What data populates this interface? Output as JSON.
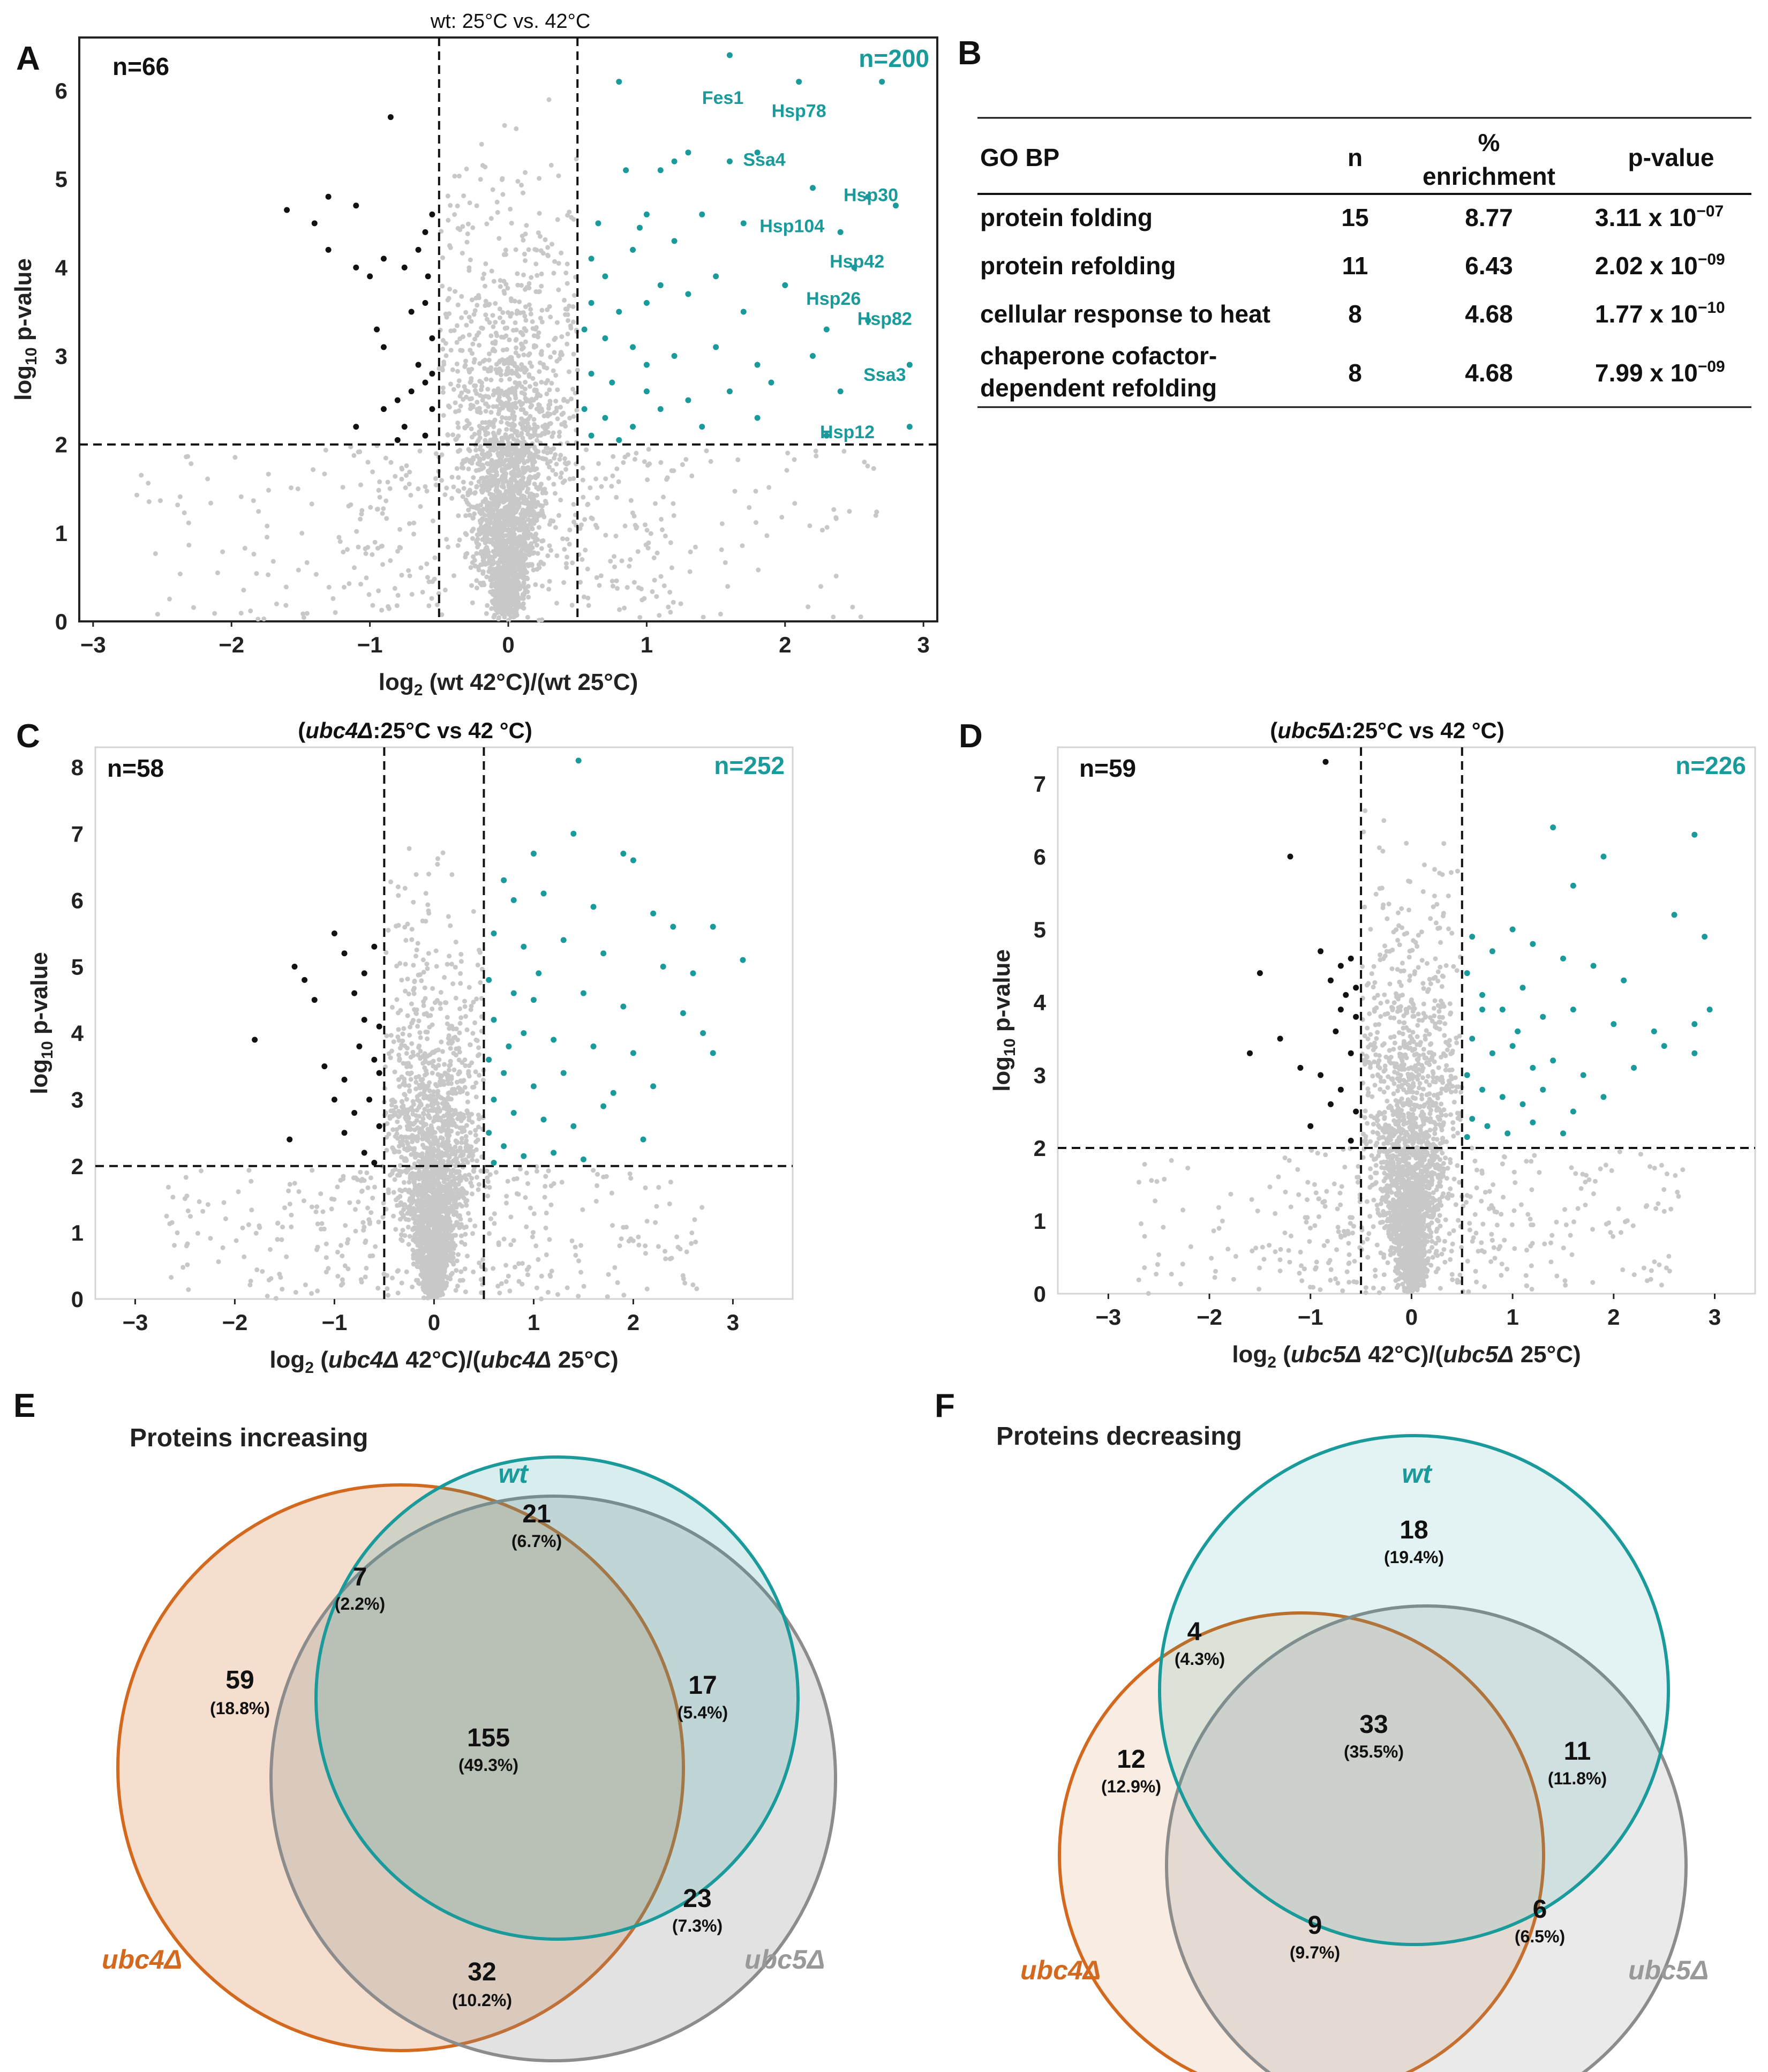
{
  "colors": {
    "teal": "#1a9a9a",
    "black": "#111111",
    "grey": "#c8c8c8",
    "orange": "#d2691e",
    "venn_grey": "#8c8c8c"
  },
  "chart_data": [
    {
      "id": "A",
      "type": "scatter",
      "letter": "A",
      "title": "wt: 25°C vs. 42°C",
      "xlabel": "log2 (wt 42°C)/(wt 25°C)",
      "xlabel_parts": [
        "log",
        "2",
        " (wt 42°C)/(wt 25°C)"
      ],
      "ylabel": "log10 p-value",
      "ylabel_parts": [
        "log",
        "10",
        " p-value"
      ],
      "xlim": [
        -3.1,
        3.1
      ],
      "ylim": [
        0,
        6.6
      ],
      "xticks": [
        -3,
        -2,
        -1,
        0,
        1,
        2,
        3
      ],
      "yticks": [
        0,
        1,
        2,
        3,
        4,
        5,
        6
      ],
      "thresholds": {
        "x": [
          -0.5,
          0.5
        ],
        "y": 2
      },
      "n_down": "n=66",
      "n_up": "n=200",
      "down_points": [
        [
          -1.6,
          4.65
        ],
        [
          -1.4,
          4.5
        ],
        [
          -1.3,
          4.8
        ],
        [
          -1.1,
          4.7
        ],
        [
          -0.85,
          5.7
        ],
        [
          -1.3,
          4.2
        ],
        [
          -1.1,
          4.0
        ],
        [
          -1.0,
          3.9
        ],
        [
          -0.9,
          4.1
        ],
        [
          -0.75,
          4.0
        ],
        [
          -0.65,
          4.2
        ],
        [
          -0.6,
          4.4
        ],
        [
          -0.55,
          4.6
        ],
        [
          -0.95,
          3.3
        ],
        [
          -0.9,
          3.1
        ],
        [
          -0.7,
          3.5
        ],
        [
          -0.6,
          3.6
        ],
        [
          -0.55,
          3.2
        ],
        [
          -0.65,
          2.9
        ],
        [
          -0.7,
          2.6
        ],
        [
          -0.8,
          2.5
        ],
        [
          -0.6,
          2.7
        ],
        [
          -0.55,
          2.4
        ],
        [
          -1.1,
          2.2
        ],
        [
          -0.9,
          2.4
        ],
        [
          -0.75,
          2.2
        ],
        [
          -0.6,
          2.1
        ],
        [
          -0.8,
          2.05
        ],
        [
          -0.55,
          2.8
        ],
        [
          -0.58,
          3.9
        ]
      ],
      "up_points": [
        [
          0.8,
          6.1
        ],
        [
          1.6,
          6.4
        ],
        [
          2.1,
          6.1
        ],
        [
          2.7,
          6.1
        ],
        [
          1.8,
          5.3
        ],
        [
          1.6,
          5.2
        ],
        [
          1.3,
          5.3
        ],
        [
          1.1,
          5.1
        ],
        [
          2.2,
          4.9
        ],
        [
          2.6,
          4.8
        ],
        [
          2.8,
          4.7
        ],
        [
          1.0,
          4.6
        ],
        [
          1.4,
          4.6
        ],
        [
          1.7,
          4.5
        ],
        [
          2.4,
          4.4
        ],
        [
          1.2,
          4.3
        ],
        [
          0.9,
          4.2
        ],
        [
          0.6,
          4.1
        ],
        [
          0.7,
          3.9
        ],
        [
          1.1,
          3.8
        ],
        [
          1.5,
          3.9
        ],
        [
          2.0,
          3.8
        ],
        [
          2.5,
          4.0
        ],
        [
          0.6,
          3.6
        ],
        [
          0.8,
          3.5
        ],
        [
          1.0,
          3.6
        ],
        [
          1.3,
          3.7
        ],
        [
          1.7,
          3.5
        ],
        [
          2.3,
          3.3
        ],
        [
          2.6,
          3.4
        ],
        [
          0.55,
          3.3
        ],
        [
          0.7,
          3.2
        ],
        [
          0.9,
          3.1
        ],
        [
          1.2,
          3.0
        ],
        [
          1.5,
          3.1
        ],
        [
          1.8,
          2.9
        ],
        [
          2.2,
          3.0
        ],
        [
          2.9,
          2.9
        ],
        [
          0.6,
          2.8
        ],
        [
          0.75,
          2.7
        ],
        [
          1.0,
          2.6
        ],
        [
          1.3,
          2.5
        ],
        [
          1.6,
          2.6
        ],
        [
          1.9,
          2.7
        ],
        [
          2.4,
          2.6
        ],
        [
          0.55,
          2.4
        ],
        [
          0.7,
          2.3
        ],
        [
          0.9,
          2.2
        ],
        [
          1.1,
          2.4
        ],
        [
          1.4,
          2.2
        ],
        [
          1.8,
          2.3
        ],
        [
          2.3,
          2.1
        ],
        [
          2.9,
          2.2
        ],
        [
          0.6,
          2.1
        ],
        [
          0.8,
          2.05
        ],
        [
          1.0,
          2.9
        ],
        [
          0.65,
          4.5
        ],
        [
          0.85,
          5.1
        ],
        [
          1.2,
          5.2
        ],
        [
          0.95,
          4.45
        ]
      ],
      "labels": [
        {
          "text": "Fes1",
          "x": 1.55,
          "y": 5.85
        },
        {
          "text": "Hsp78",
          "x": 2.1,
          "y": 5.7
        },
        {
          "text": "Ssa4",
          "x": 1.85,
          "y": 5.15
        },
        {
          "text": "Hsp30",
          "x": 2.62,
          "y": 4.75
        },
        {
          "text": "Hsp104",
          "x": 2.05,
          "y": 4.4
        },
        {
          "text": "Hsp42",
          "x": 2.52,
          "y": 4.0
        },
        {
          "text": "Hsp26",
          "x": 2.35,
          "y": 3.58
        },
        {
          "text": "Hsp82",
          "x": 2.72,
          "y": 3.35
        },
        {
          "text": "Ssa3",
          "x": 2.72,
          "y": 2.72
        },
        {
          "text": "Hsp12",
          "x": 2.45,
          "y": 2.07
        }
      ]
    },
    {
      "id": "C",
      "type": "scatter",
      "letter": "C",
      "title": "(ubc4Δ:25°C vs 42 °C)",
      "title_parts": [
        "(",
        "ubc4Δ",
        ":25°C  vs 42 °C)"
      ],
      "xlabel": "log2 (ubc4Δ 42°C)/(ubc4Δ 25°C)",
      "xlabel_parts": [
        "log",
        "2",
        " (",
        "ubc4Δ",
        " 42°C)/(",
        "ubc4Δ",
        " 25°C)"
      ],
      "ylabel": "log10 p-value",
      "ylabel_parts": [
        "log",
        "10",
        " p-value"
      ],
      "xlim": [
        -3.4,
        3.6
      ],
      "ylim": [
        0,
        8.3
      ],
      "xticks": [
        -3,
        -2,
        -1,
        0,
        1,
        2,
        3
      ],
      "yticks": [
        0,
        1,
        2,
        3,
        4,
        5,
        6,
        7,
        8
      ],
      "thresholds": {
        "x": [
          -0.5,
          0.5
        ],
        "y": 2
      },
      "n_down": "n=58",
      "n_up": "n=252",
      "down_points": [
        [
          -1.8,
          3.9
        ],
        [
          -1.4,
          5.0
        ],
        [
          -1.3,
          4.8
        ],
        [
          -1.0,
          5.5
        ],
        [
          -0.9,
          5.2
        ],
        [
          -1.2,
          4.5
        ],
        [
          -0.8,
          4.6
        ],
        [
          -0.7,
          4.9
        ],
        [
          -0.6,
          5.3
        ],
        [
          -1.1,
          3.5
        ],
        [
          -0.9,
          3.3
        ],
        [
          -0.75,
          3.8
        ],
        [
          -0.6,
          3.6
        ],
        [
          -0.55,
          4.1
        ],
        [
          -1.45,
          2.4
        ],
        [
          -0.8,
          2.8
        ],
        [
          -0.65,
          3.0
        ],
        [
          -0.55,
          2.6
        ],
        [
          -0.7,
          2.2
        ],
        [
          -0.6,
          2.05
        ],
        [
          -0.9,
          2.5
        ],
        [
          -1.0,
          3.0
        ],
        [
          -0.55,
          3.4
        ],
        [
          -0.7,
          4.2
        ]
      ],
      "up_points": [
        [
          1.45,
          8.1
        ],
        [
          1.0,
          6.7
        ],
        [
          1.4,
          7.0
        ],
        [
          1.9,
          6.7
        ],
        [
          2.0,
          6.6
        ],
        [
          0.7,
          6.3
        ],
        [
          0.8,
          6.0
        ],
        [
          1.1,
          6.1
        ],
        [
          1.6,
          5.9
        ],
        [
          2.2,
          5.8
        ],
        [
          2.8,
          5.6
        ],
        [
          3.1,
          5.1
        ],
        [
          0.6,
          5.5
        ],
        [
          0.9,
          5.3
        ],
        [
          1.3,
          5.4
        ],
        [
          1.7,
          5.2
        ],
        [
          2.3,
          5.0
        ],
        [
          2.6,
          4.9
        ],
        [
          0.55,
          4.8
        ],
        [
          0.8,
          4.6
        ],
        [
          1.0,
          4.5
        ],
        [
          1.5,
          4.6
        ],
        [
          1.9,
          4.4
        ],
        [
          2.5,
          4.3
        ],
        [
          2.7,
          4.0
        ],
        [
          0.6,
          4.2
        ],
        [
          0.9,
          4.0
        ],
        [
          1.2,
          3.9
        ],
        [
          1.6,
          3.8
        ],
        [
          2.0,
          3.7
        ],
        [
          2.8,
          3.7
        ],
        [
          0.55,
          3.6
        ],
        [
          0.7,
          3.4
        ],
        [
          1.0,
          3.2
        ],
        [
          1.3,
          3.4
        ],
        [
          1.8,
          3.1
        ],
        [
          2.2,
          3.2
        ],
        [
          0.6,
          3.0
        ],
        [
          0.8,
          2.8
        ],
        [
          1.1,
          2.7
        ],
        [
          1.4,
          2.6
        ],
        [
          1.7,
          2.9
        ],
        [
          2.1,
          2.4
        ],
        [
          0.55,
          2.5
        ],
        [
          0.7,
          2.3
        ],
        [
          0.9,
          2.15
        ],
        [
          1.2,
          2.2
        ],
        [
          1.5,
          2.1
        ],
        [
          0.6,
          2.05
        ],
        [
          0.75,
          3.8
        ],
        [
          1.05,
          4.9
        ],
        [
          2.4,
          5.6
        ]
      ]
    },
    {
      "id": "D",
      "type": "scatter",
      "letter": "D",
      "title": "(ubc5Δ:25°C vs 42 °C)",
      "title_parts": [
        "(",
        "ubc5Δ",
        ":25°C  vs 42 °C)"
      ],
      "xlabel": "log2 (ubc5Δ 42°C)/(ubc5Δ 25°C)",
      "xlabel_parts": [
        "log",
        "2",
        " (",
        "ubc5Δ",
        " 42°C)/(",
        "ubc5Δ",
        " 25°C)"
      ],
      "ylabel": "log10 p-value",
      "ylabel_parts": [
        "log",
        "10",
        " p-value"
      ],
      "xlim": [
        -3.5,
        3.4
      ],
      "ylim": [
        0,
        7.5
      ],
      "xticks": [
        -3,
        -2,
        -1,
        0,
        1,
        2,
        3
      ],
      "yticks": [
        0,
        1,
        2,
        3,
        4,
        5,
        6,
        7
      ],
      "thresholds": {
        "x": [
          -0.5,
          0.5
        ],
        "y": 2
      },
      "n_down": "n=59",
      "n_up": "n=226",
      "down_points": [
        [
          -0.85,
          7.3
        ],
        [
          -1.2,
          6.0
        ],
        [
          -1.5,
          4.4
        ],
        [
          -1.6,
          3.3
        ],
        [
          -1.3,
          3.5
        ],
        [
          -0.9,
          4.7
        ],
        [
          -0.7,
          4.5
        ],
        [
          -0.6,
          4.6
        ],
        [
          -0.8,
          4.3
        ],
        [
          -0.65,
          4.1
        ],
        [
          -1.1,
          3.1
        ],
        [
          -0.9,
          3.0
        ],
        [
          -0.75,
          3.6
        ],
        [
          -0.55,
          3.8
        ],
        [
          -0.6,
          3.3
        ],
        [
          -0.7,
          2.8
        ],
        [
          -0.55,
          2.5
        ],
        [
          -1.0,
          2.3
        ],
        [
          -0.8,
          2.6
        ],
        [
          -0.6,
          2.1
        ],
        [
          -0.55,
          4.2
        ],
        [
          -0.7,
          3.9
        ]
      ],
      "up_points": [
        [
          1.4,
          6.4
        ],
        [
          2.8,
          6.3
        ],
        [
          1.9,
          6.0
        ],
        [
          1.6,
          5.6
        ],
        [
          2.6,
          5.2
        ],
        [
          2.9,
          4.9
        ],
        [
          0.6,
          4.9
        ],
        [
          0.8,
          4.7
        ],
        [
          1.0,
          5.0
        ],
        [
          1.2,
          4.8
        ],
        [
          1.5,
          4.6
        ],
        [
          1.8,
          4.5
        ],
        [
          2.1,
          4.3
        ],
        [
          0.55,
          4.4
        ],
        [
          0.7,
          4.1
        ],
        [
          0.9,
          3.9
        ],
        [
          1.1,
          4.2
        ],
        [
          1.3,
          3.8
        ],
        [
          1.6,
          3.9
        ],
        [
          2.0,
          3.7
        ],
        [
          2.4,
          3.6
        ],
        [
          2.8,
          3.7
        ],
        [
          2.95,
          3.9
        ],
        [
          0.6,
          3.5
        ],
        [
          0.8,
          3.3
        ],
        [
          1.0,
          3.4
        ],
        [
          1.2,
          3.1
        ],
        [
          1.4,
          3.2
        ],
        [
          1.7,
          3.0
        ],
        [
          2.2,
          3.1
        ],
        [
          2.8,
          3.3
        ],
        [
          0.55,
          3.0
        ],
        [
          0.7,
          2.8
        ],
        [
          0.9,
          2.7
        ],
        [
          1.1,
          2.6
        ],
        [
          1.3,
          2.8
        ],
        [
          1.6,
          2.5
        ],
        [
          1.9,
          2.7
        ],
        [
          0.6,
          2.4
        ],
        [
          0.75,
          2.3
        ],
        [
          0.95,
          2.2
        ],
        [
          1.2,
          2.35
        ],
        [
          1.5,
          2.2
        ],
        [
          0.55,
          2.15
        ],
        [
          0.7,
          3.9
        ],
        [
          1.05,
          3.6
        ],
        [
          2.5,
          3.4
        ]
      ]
    }
  ],
  "table": {
    "letter": "B",
    "headers": {
      "col1": "GO BP",
      "col2": "n",
      "col3_line1": "%",
      "col3_line2": "enrichment",
      "col4": "p-value"
    },
    "rows": [
      {
        "term": "protein folding",
        "n": "15",
        "pct": "8.77",
        "p_base": "3.11 x  10",
        "p_exp": "−07"
      },
      {
        "term": "protein refolding",
        "n": "11",
        "pct": "6.43",
        "p_base": "2.02 x  10",
        "p_exp": "−09"
      },
      {
        "term": "cellular response to heat",
        "n": "8",
        "pct": "4.68",
        "p_base": "1.77 x  10",
        "p_exp": "−10"
      },
      {
        "term_line1": "chaperone cofactor-",
        "term_line2": "dependent refolding",
        "n": "8",
        "pct": "4.68",
        "p_base": "7.99 x  10",
        "p_exp": "−09"
      }
    ]
  },
  "venn_E": {
    "letter": "E",
    "title": "Proteins increasing",
    "sets": {
      "wt": "wt",
      "ubc4": "ubc4Δ",
      "ubc5": "ubc5Δ"
    },
    "regions": [
      {
        "id": "wt_only",
        "count": "21",
        "pct": "(6.7%)"
      },
      {
        "id": "wt_ubc4",
        "count": "7",
        "pct": "(2.2%)"
      },
      {
        "id": "ubc4_only",
        "count": "59",
        "pct": "(18.8%)"
      },
      {
        "id": "all",
        "count": "155",
        "pct": "(49.3%)"
      },
      {
        "id": "wt_ubc5",
        "count": "17",
        "pct": "(5.4%)"
      },
      {
        "id": "ubc5_only",
        "count": "23",
        "pct": "(7.3%)"
      },
      {
        "id": "ubc4_ubc5",
        "count": "32",
        "pct": "(10.2%)"
      }
    ]
  },
  "venn_F": {
    "letter": "F",
    "title": "Proteins decreasing",
    "sets": {
      "wt": "wt",
      "ubc4": "ubc4Δ",
      "ubc5": "ubc5Δ"
    },
    "regions": [
      {
        "id": "wt_only",
        "count": "18",
        "pct": "(19.4%)"
      },
      {
        "id": "wt_ubc4",
        "count": "4",
        "pct": "(4.3%)"
      },
      {
        "id": "ubc4_only",
        "count": "12",
        "pct": "(12.9%)"
      },
      {
        "id": "all",
        "count": "33",
        "pct": "(35.5%)"
      },
      {
        "id": "wt_ubc5",
        "count": "11",
        "pct": "(11.8%)"
      },
      {
        "id": "ubc5_only",
        "count": "6",
        "pct": "(6.5%)"
      },
      {
        "id": "ubc4_ubc5",
        "count": "9",
        "pct": "(9.7%)"
      }
    ]
  }
}
